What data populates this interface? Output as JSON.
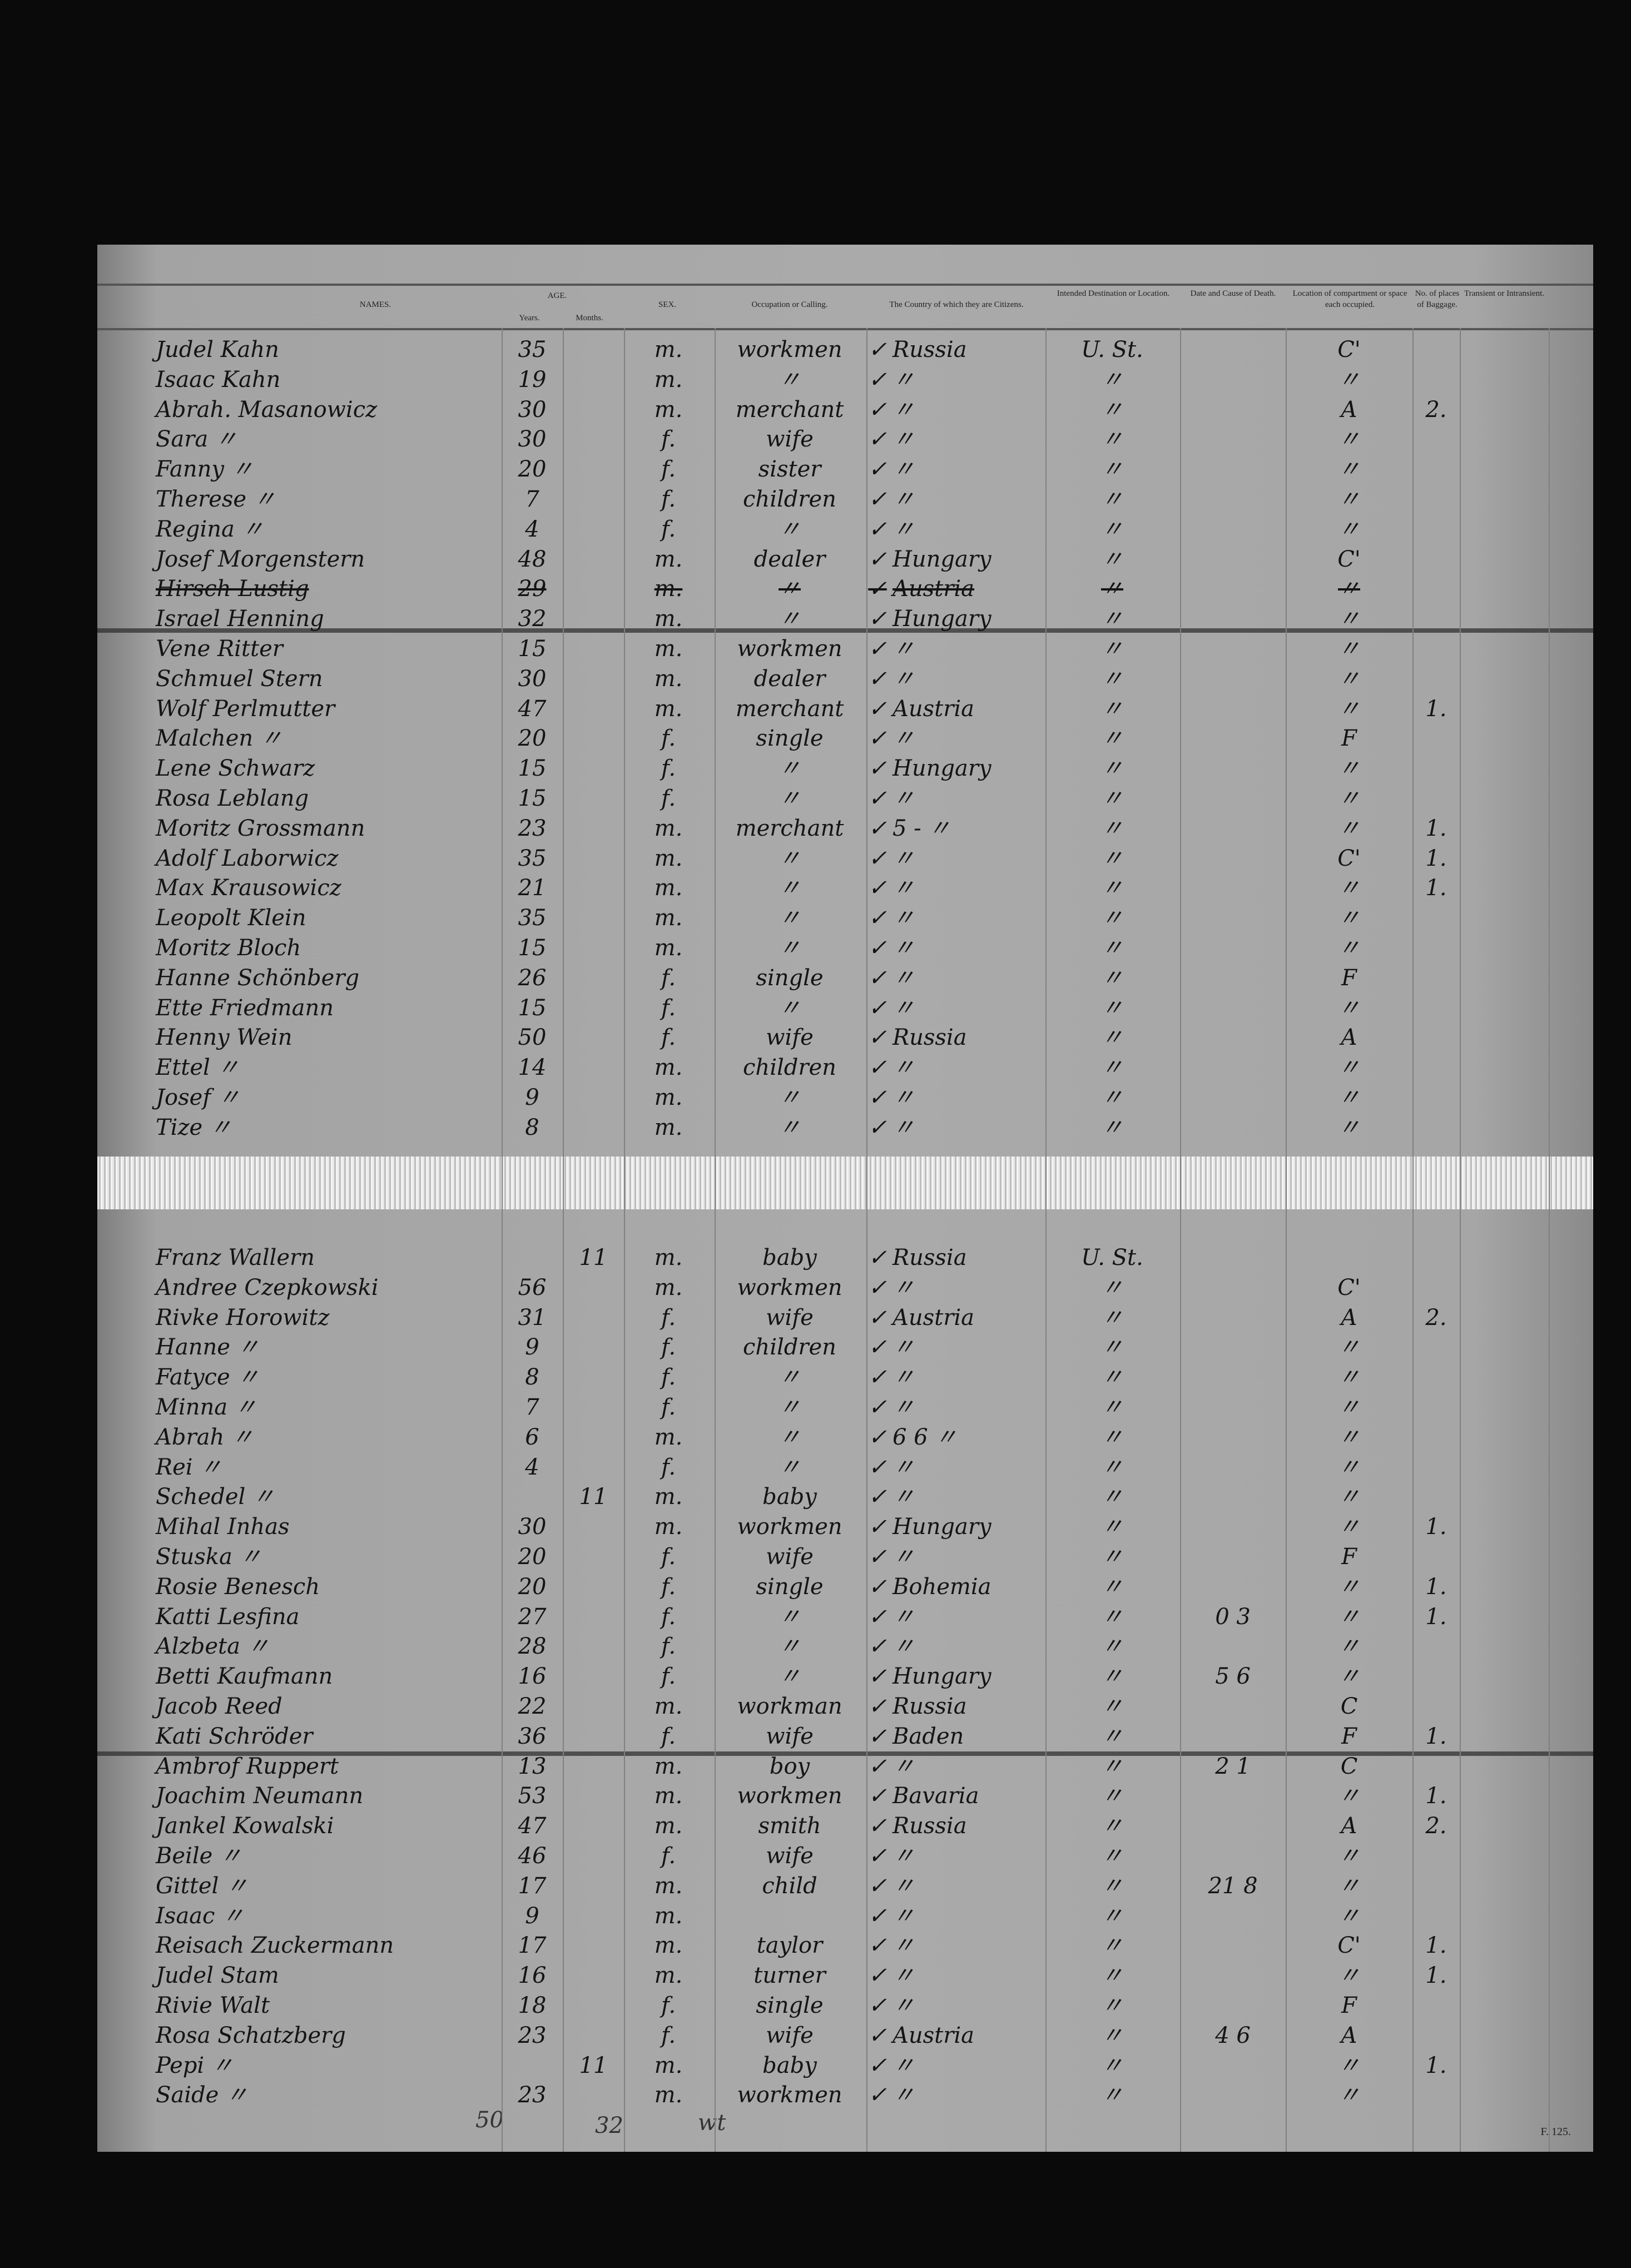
{
  "headers": {
    "names": "NAMES.",
    "age": "AGE.",
    "years": "Years.",
    "months": "Months.",
    "sex": "SEX.",
    "occupation": "Occupation or Calling.",
    "country": "The Country of which they are Citizens.",
    "destination": "Intended Destination or Location.",
    "death": "Date and Cause of Death.",
    "compartment": "Location of compartment or space each occupied.",
    "baggage": "No. of places of Baggage.",
    "transient": "Transient or Intransient."
  },
  "rows_top": [
    {
      "name": "Judel Kahn",
      "years": "35",
      "months": "",
      "sex": "m.",
      "occupation": "workmen",
      "country": "Russia",
      "destination": "U. St.",
      "death": "",
      "compartment": "C'",
      "baggage": ""
    },
    {
      "name": "Isaac Kahn",
      "years": "19",
      "months": "",
      "sex": "m.",
      "occupation": "〃",
      "country": "〃",
      "destination": "〃",
      "death": "",
      "compartment": "〃",
      "baggage": ""
    },
    {
      "name": "Abrah. Masanowicz",
      "years": "30",
      "months": "",
      "sex": "m.",
      "occupation": "merchant",
      "country": "〃",
      "destination": "〃",
      "death": "",
      "compartment": "A",
      "baggage": "2."
    },
    {
      "name": "Sara 〃",
      "years": "30",
      "months": "",
      "sex": "f.",
      "occupation": "wife",
      "country": "〃",
      "destination": "〃",
      "death": "",
      "compartment": "〃",
      "baggage": ""
    },
    {
      "name": "Fanny 〃",
      "years": "20",
      "months": "",
      "sex": "f.",
      "occupation": "sister",
      "country": "〃",
      "destination": "〃",
      "death": "",
      "compartment": "〃",
      "baggage": ""
    },
    {
      "name": "Therese 〃",
      "years": "7",
      "months": "",
      "sex": "f.",
      "occupation": "children",
      "country": "〃",
      "destination": "〃",
      "death": "",
      "compartment": "〃",
      "baggage": ""
    },
    {
      "name": "Regina 〃",
      "years": "4",
      "months": "",
      "sex": "f.",
      "occupation": "〃",
      "country": "〃",
      "destination": "〃",
      "death": "",
      "compartment": "〃",
      "baggage": ""
    },
    {
      "name": "Josef Morgenstern",
      "years": "48",
      "months": "",
      "sex": "m.",
      "occupation": "dealer",
      "country": "Hungary",
      "destination": "〃",
      "death": "",
      "compartment": "C'",
      "baggage": ""
    },
    {
      "name": "Hirsch Lustig",
      "years": "29",
      "months": "",
      "sex": "m.",
      "occupation": "〃",
      "country": "Austria",
      "destination": "〃",
      "death": "",
      "compartment": "〃",
      "baggage": "",
      "struck": true
    },
    {
      "name": "Israel Henning",
      "years": "32",
      "months": "",
      "sex": "m.",
      "occupation": "〃",
      "country": "Hungary",
      "destination": "〃",
      "death": "",
      "compartment": "〃",
      "baggage": ""
    },
    {
      "name": "Vene Ritter",
      "years": "15",
      "months": "",
      "sex": "m.",
      "occupation": "workmen",
      "country": "〃",
      "destination": "〃",
      "death": "",
      "compartment": "〃",
      "baggage": ""
    },
    {
      "name": "Schmuel Stern",
      "years": "30",
      "months": "",
      "sex": "m.",
      "occupation": "dealer",
      "country": "〃",
      "destination": "〃",
      "death": "",
      "compartment": "〃",
      "baggage": ""
    },
    {
      "name": "Wolf Perlmutter",
      "years": "47",
      "months": "",
      "sex": "m.",
      "occupation": "merchant",
      "country": "Austria",
      "destination": "〃",
      "death": "",
      "compartment": "〃",
      "baggage": "1."
    },
    {
      "name": "Malchen 〃",
      "years": "20",
      "months": "",
      "sex": "f.",
      "occupation": "single",
      "country": "〃",
      "destination": "〃",
      "death": "",
      "compartment": "F",
      "baggage": ""
    },
    {
      "name": "Lene Schwarz",
      "years": "15",
      "months": "",
      "sex": "f.",
      "occupation": "〃",
      "country": "Hungary",
      "destination": "〃",
      "death": "",
      "compartment": "〃",
      "baggage": ""
    },
    {
      "name": "Rosa Leblang",
      "years": "15",
      "months": "",
      "sex": "f.",
      "occupation": "〃",
      "country": "〃",
      "destination": "〃",
      "death": "",
      "compartment": "〃",
      "baggage": ""
    },
    {
      "name": "Moritz Grossmann",
      "years": "23",
      "months": "",
      "sex": "m.",
      "occupation": "merchant",
      "country": "5 - 〃",
      "destination": "〃",
      "death": "",
      "compartment": "〃",
      "baggage": "1."
    },
    {
      "name": "Adolf Laborwicz",
      "years": "35",
      "months": "",
      "sex": "m.",
      "occupation": "〃",
      "country": "〃",
      "destination": "〃",
      "death": "",
      "compartment": "C'",
      "baggage": "1."
    },
    {
      "name": "Max Krausowicz",
      "years": "21",
      "months": "",
      "sex": "m.",
      "occupation": "〃",
      "country": "〃",
      "destination": "〃",
      "death": "",
      "compartment": "〃",
      "baggage": "1."
    },
    {
      "name": "Leopolt Klein",
      "years": "35",
      "months": "",
      "sex": "m.",
      "occupation": "〃",
      "country": "〃",
      "destination": "〃",
      "death": "",
      "compartment": "〃",
      "baggage": ""
    },
    {
      "name": "Moritz Bloch",
      "years": "15",
      "months": "",
      "sex": "m.",
      "occupation": "〃",
      "country": "〃",
      "destination": "〃",
      "death": "",
      "compartment": "〃",
      "baggage": ""
    },
    {
      "name": "Hanne Schönberg",
      "years": "26",
      "months": "",
      "sex": "f.",
      "occupation": "single",
      "country": "〃",
      "destination": "〃",
      "death": "",
      "compartment": "F",
      "baggage": ""
    },
    {
      "name": "Ette Friedmann",
      "years": "15",
      "months": "",
      "sex": "f.",
      "occupation": "〃",
      "country": "〃",
      "destination": "〃",
      "death": "",
      "compartment": "〃",
      "baggage": ""
    },
    {
      "name": "Henny Wein",
      "years": "50",
      "months": "",
      "sex": "f.",
      "occupation": "wife",
      "country": "Russia",
      "destination": "〃",
      "death": "",
      "compartment": "A",
      "baggage": ""
    },
    {
      "name": "Ettel 〃",
      "years": "14",
      "months": "",
      "sex": "m.",
      "occupation": "children",
      "country": "〃",
      "destination": "〃",
      "death": "",
      "compartment": "〃",
      "baggage": ""
    },
    {
      "name": "Josef 〃",
      "years": "9",
      "months": "",
      "sex": "m.",
      "occupation": "〃",
      "country": "〃",
      "destination": "〃",
      "death": "",
      "compartment": "〃",
      "baggage": ""
    },
    {
      "name": "Tize 〃",
      "years": "8",
      "months": "",
      "sex": "m.",
      "occupation": "〃",
      "country": "〃",
      "destination": "〃",
      "death": "",
      "compartment": "〃",
      "baggage": ""
    }
  ],
  "rows_bottom": [
    {
      "name": "Franz Wallern",
      "years": "",
      "months": "11",
      "sex": "m.",
      "occupation": "baby",
      "country": "Russia",
      "destination": "U. St.",
      "death": "",
      "compartment": "",
      "baggage": ""
    },
    {
      "name": "Andree Czepkowski",
      "years": "56",
      "months": "",
      "sex": "m.",
      "occupation": "workmen",
      "country": "〃",
      "destination": "〃",
      "death": "",
      "compartment": "C'",
      "baggage": ""
    },
    {
      "name": "Rivke Horowitz",
      "years": "31",
      "months": "",
      "sex": "f.",
      "occupation": "wife",
      "country": "Austria",
      "destination": "〃",
      "death": "",
      "compartment": "A",
      "baggage": "2."
    },
    {
      "name": "Hanne 〃",
      "years": "9",
      "months": "",
      "sex": "f.",
      "occupation": "children",
      "country": "〃",
      "destination": "〃",
      "death": "",
      "compartment": "〃",
      "baggage": ""
    },
    {
      "name": "Fatyce 〃",
      "years": "8",
      "months": "",
      "sex": "f.",
      "occupation": "〃",
      "country": "〃",
      "destination": "〃",
      "death": "",
      "compartment": "〃",
      "baggage": ""
    },
    {
      "name": "Minna 〃",
      "years": "7",
      "months": "",
      "sex": "f.",
      "occupation": "〃",
      "country": "〃",
      "destination": "〃",
      "death": "",
      "compartment": "〃",
      "baggage": ""
    },
    {
      "name": "Abrah 〃",
      "years": "6",
      "months": "",
      "sex": "m.",
      "occupation": "〃",
      "country": "6 6 〃",
      "destination": "〃",
      "death": "",
      "compartment": "〃",
      "baggage": ""
    },
    {
      "name": "Rei 〃",
      "years": "4",
      "months": "",
      "sex": "f.",
      "occupation": "〃",
      "country": "〃",
      "destination": "〃",
      "death": "",
      "compartment": "〃",
      "baggage": ""
    },
    {
      "name": "Schedel 〃",
      "years": "",
      "months": "11",
      "sex": "m.",
      "occupation": "baby",
      "country": "〃",
      "destination": "〃",
      "death": "",
      "compartment": "〃",
      "baggage": ""
    },
    {
      "name": "Mihal Inhas",
      "years": "30",
      "months": "",
      "sex": "m.",
      "occupation": "workmen",
      "country": "Hungary",
      "destination": "〃",
      "death": "",
      "compartment": "〃",
      "baggage": "1."
    },
    {
      "name": "Stuska 〃",
      "years": "20",
      "months": "",
      "sex": "f.",
      "occupation": "wife",
      "country": "〃",
      "destination": "〃",
      "death": "",
      "compartment": "F",
      "baggage": ""
    },
    {
      "name": "Rosie Benesch",
      "years": "20",
      "months": "",
      "sex": "f.",
      "occupation": "single",
      "country": "Bohemia",
      "destination": "〃",
      "death": "",
      "compartment": "〃",
      "baggage": "1."
    },
    {
      "name": "Katti Lesfina",
      "years": "27",
      "months": "",
      "sex": "f.",
      "occupation": "〃",
      "country": "〃",
      "destination": "〃",
      "death": "0 3",
      "compartment": "〃",
      "baggage": "1."
    },
    {
      "name": "Alzbeta 〃",
      "years": "28",
      "months": "",
      "sex": "f.",
      "occupation": "〃",
      "country": "〃",
      "destination": "〃",
      "death": "",
      "compartment": "〃",
      "baggage": ""
    },
    {
      "name": "Betti Kaufmann",
      "years": "16",
      "months": "",
      "sex": "f.",
      "occupation": "〃",
      "country": "Hungary",
      "destination": "〃",
      "death": "5 6",
      "compartment": "〃",
      "baggage": ""
    },
    {
      "name": "Jacob Reed",
      "years": "22",
      "months": "",
      "sex": "m.",
      "occupation": "workman",
      "country": "Russia",
      "destination": "〃",
      "death": "",
      "compartment": "C",
      "baggage": ""
    },
    {
      "name": "Kati Schröder",
      "years": "36",
      "months": "",
      "sex": "f.",
      "occupation": "wife",
      "country": "Baden",
      "destination": "〃",
      "death": "",
      "compartment": "F",
      "baggage": "1."
    },
    {
      "name": "Ambrof Ruppert",
      "years": "13",
      "months": "",
      "sex": "m.",
      "occupation": "boy",
      "country": "〃",
      "destination": "〃",
      "death": "2 1",
      "compartment": "C",
      "baggage": ""
    },
    {
      "name": "Joachim Neumann",
      "years": "53",
      "months": "",
      "sex": "m.",
      "occupation": "workmen",
      "country": "Bavaria",
      "destination": "〃",
      "death": "",
      "compartment": "〃",
      "baggage": "1."
    },
    {
      "name": "Jankel Kowalski",
      "years": "47",
      "months": "",
      "sex": "m.",
      "occupation": "smith",
      "country": "Russia",
      "destination": "〃",
      "death": "",
      "compartment": "A",
      "baggage": "2."
    },
    {
      "name": "Beile 〃",
      "years": "46",
      "months": "",
      "sex": "f.",
      "occupation": "wife",
      "country": "〃",
      "destination": "〃",
      "death": "",
      "compartment": "〃",
      "baggage": ""
    },
    {
      "name": "Gittel 〃",
      "years": "17",
      "months": "",
      "sex": "m.",
      "occupation": "child",
      "country": "〃",
      "destination": "〃",
      "death": "21 8",
      "compartment": "〃",
      "baggage": ""
    },
    {
      "name": "Isaac 〃",
      "years": "9",
      "months": "",
      "sex": "m.",
      "occupation": "",
      "country": "〃",
      "destination": "〃",
      "death": "",
      "compartment": "〃",
      "baggage": ""
    },
    {
      "name": "Reisach Zuckermann",
      "years": "17",
      "months": "",
      "sex": "m.",
      "occupation": "taylor",
      "country": "〃",
      "destination": "〃",
      "death": "",
      "compartment": "C'",
      "baggage": "1."
    },
    {
      "name": "Judel Stam",
      "years": "16",
      "months": "",
      "sex": "m.",
      "occupation": "turner",
      "country": "〃",
      "destination": "〃",
      "death": "",
      "compartment": "〃",
      "baggage": "1."
    },
    {
      "name": "Rivie Walt",
      "years": "18",
      "months": "",
      "sex": "f.",
      "occupation": "single",
      "country": "〃",
      "destination": "〃",
      "death": "",
      "compartment": "F",
      "baggage": ""
    },
    {
      "name": "Rosa Schatzberg",
      "years": "23",
      "months": "",
      "sex": "f.",
      "occupation": "wife",
      "country": "Austria",
      "destination": "〃",
      "death": "4 6",
      "compartment": "A",
      "baggage": ""
    },
    {
      "name": "Pepi 〃",
      "years": "",
      "months": "11",
      "sex": "m.",
      "occupation": "baby",
      "country": "〃",
      "destination": "〃",
      "death": "",
      "compartment": "〃",
      "baggage": "1."
    },
    {
      "name": "Saide 〃",
      "years": "23",
      "months": "",
      "sex": "m.",
      "occupation": "workmen",
      "country": "〃",
      "destination": "〃",
      "death": "",
      "compartment": "〃",
      "baggage": ""
    }
  ],
  "tally_notes": [
    "50",
    "32",
    "wt"
  ],
  "form_number": "F. 125."
}
